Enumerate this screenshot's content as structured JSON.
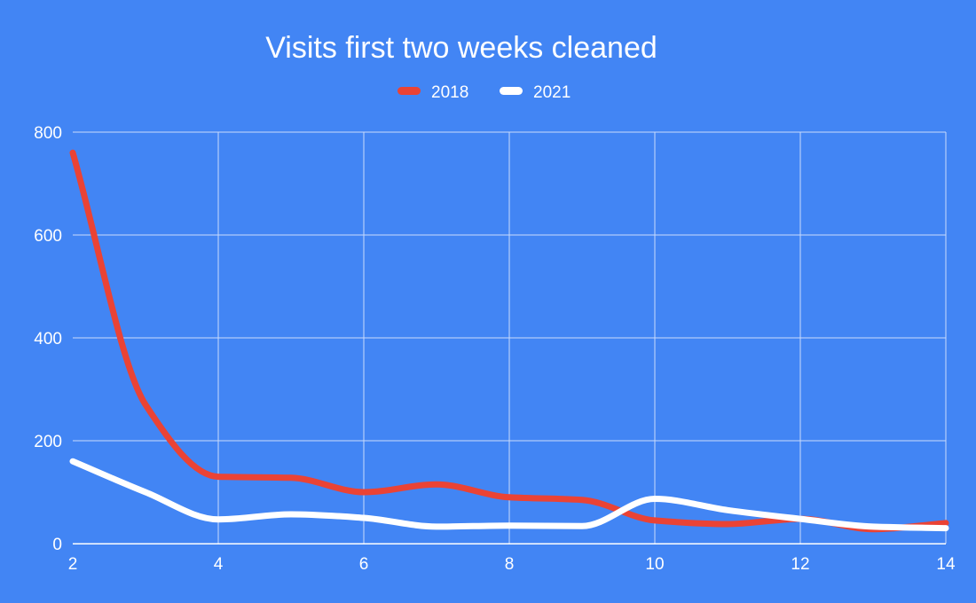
{
  "chart_data": {
    "type": "line",
    "title": "Visits first two weeks cleaned",
    "xlabel": "",
    "ylabel": "",
    "x": [
      2,
      3,
      4,
      5,
      6,
      7,
      8,
      9,
      10,
      11,
      12,
      13,
      14
    ],
    "xlim": [
      2,
      14
    ],
    "ylim": [
      0,
      800
    ],
    "x_ticks": [
      2,
      4,
      6,
      8,
      10,
      12,
      14
    ],
    "y_ticks": [
      0,
      200,
      400,
      600,
      800
    ],
    "grid": true,
    "legend_position": "top",
    "smooth": true,
    "series": [
      {
        "name": "2018",
        "color": "#ea4335",
        "values": [
          760,
          270,
          130,
          128,
          100,
          115,
          90,
          85,
          45,
          38,
          48,
          28,
          40
        ]
      },
      {
        "name": "2021",
        "color": "#ffffff",
        "values": [
          160,
          100,
          47,
          57,
          50,
          33,
          35,
          34,
          87,
          65,
          48,
          33,
          30
        ]
      }
    ]
  }
}
